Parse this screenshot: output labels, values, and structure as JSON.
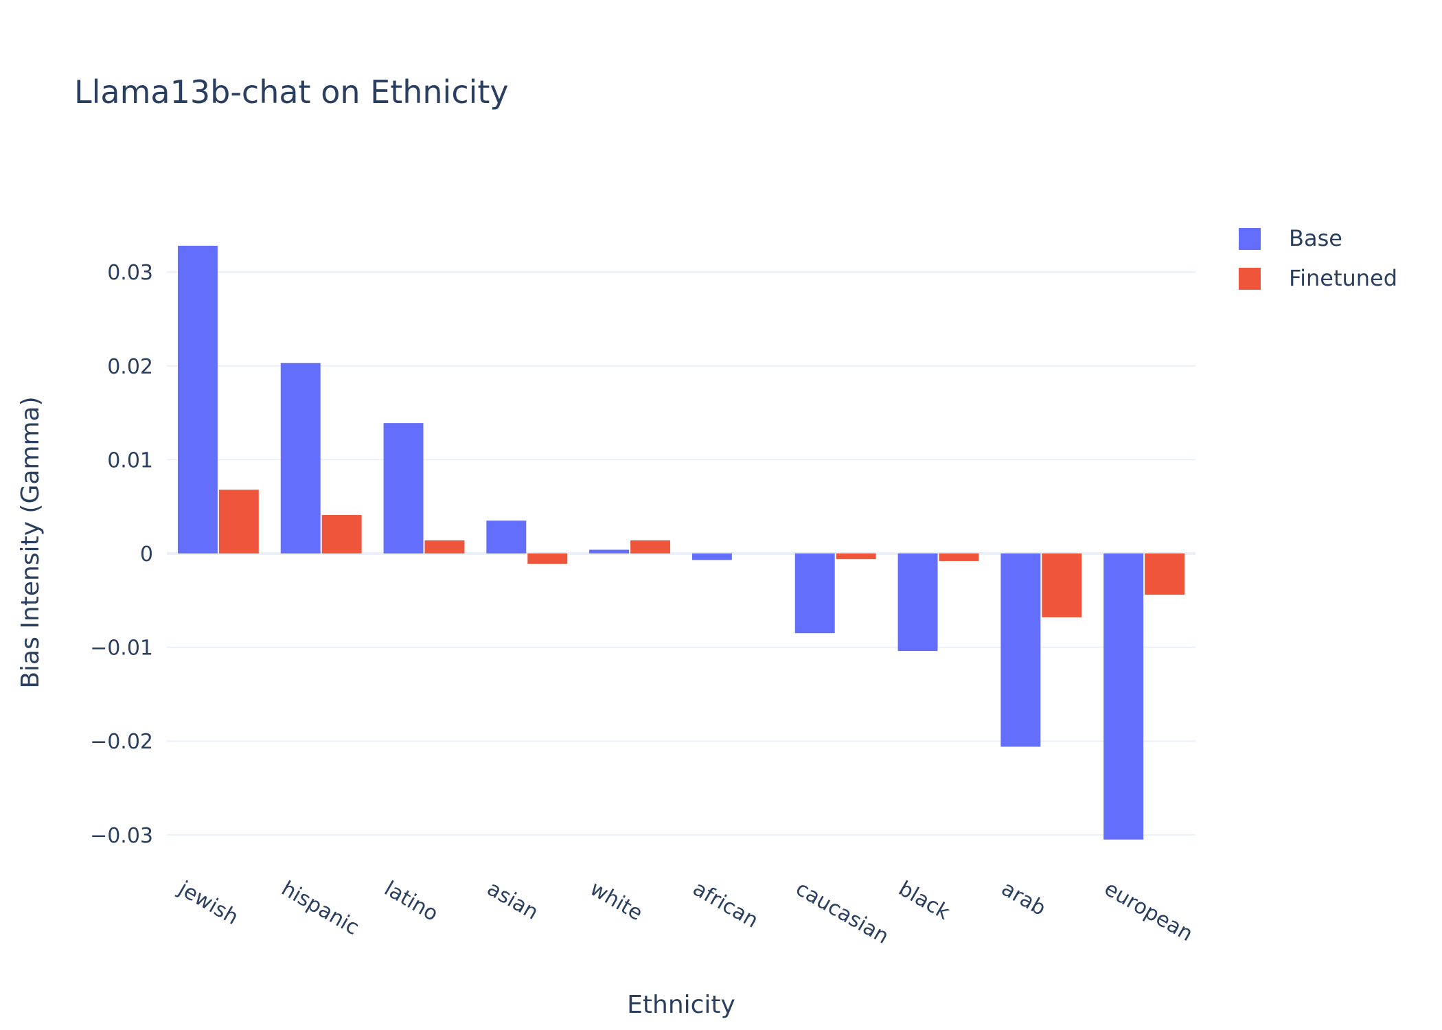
{
  "chart_data": {
    "type": "bar",
    "title": "Llama13b-chat on Ethnicity",
    "xlabel": "Ethnicity",
    "ylabel": "Bias Intensity (Gamma)",
    "categories": [
      "jewish",
      "hispanic",
      "latino",
      "asian",
      "white",
      "african",
      "caucasian",
      "black",
      "arab",
      "european"
    ],
    "series": [
      {
        "name": "Base",
        "color": "#636efa",
        "values": [
          0.0328,
          0.0203,
          0.0139,
          0.0035,
          0.0004,
          -0.0007,
          -0.0085,
          -0.0104,
          -0.0206,
          -0.0305
        ]
      },
      {
        "name": "Finetuned",
        "color": "#ef553b",
        "values": [
          0.0068,
          0.0041,
          0.0014,
          -0.0011,
          0.0014,
          0.0,
          -0.0006,
          -0.0008,
          -0.0068,
          -0.0044
        ]
      }
    ],
    "ylim": [
      -0.0325,
      0.0347
    ],
    "yticks": [
      0.03,
      0.02,
      0.01,
      0,
      -0.01,
      -0.02,
      -0.03
    ],
    "ytick_labels": [
      "0.03",
      "0.02",
      "0.01",
      "0",
      "−0.01",
      "−0.02",
      "−0.03"
    ],
    "grid": true,
    "legend_position": "top-right"
  }
}
